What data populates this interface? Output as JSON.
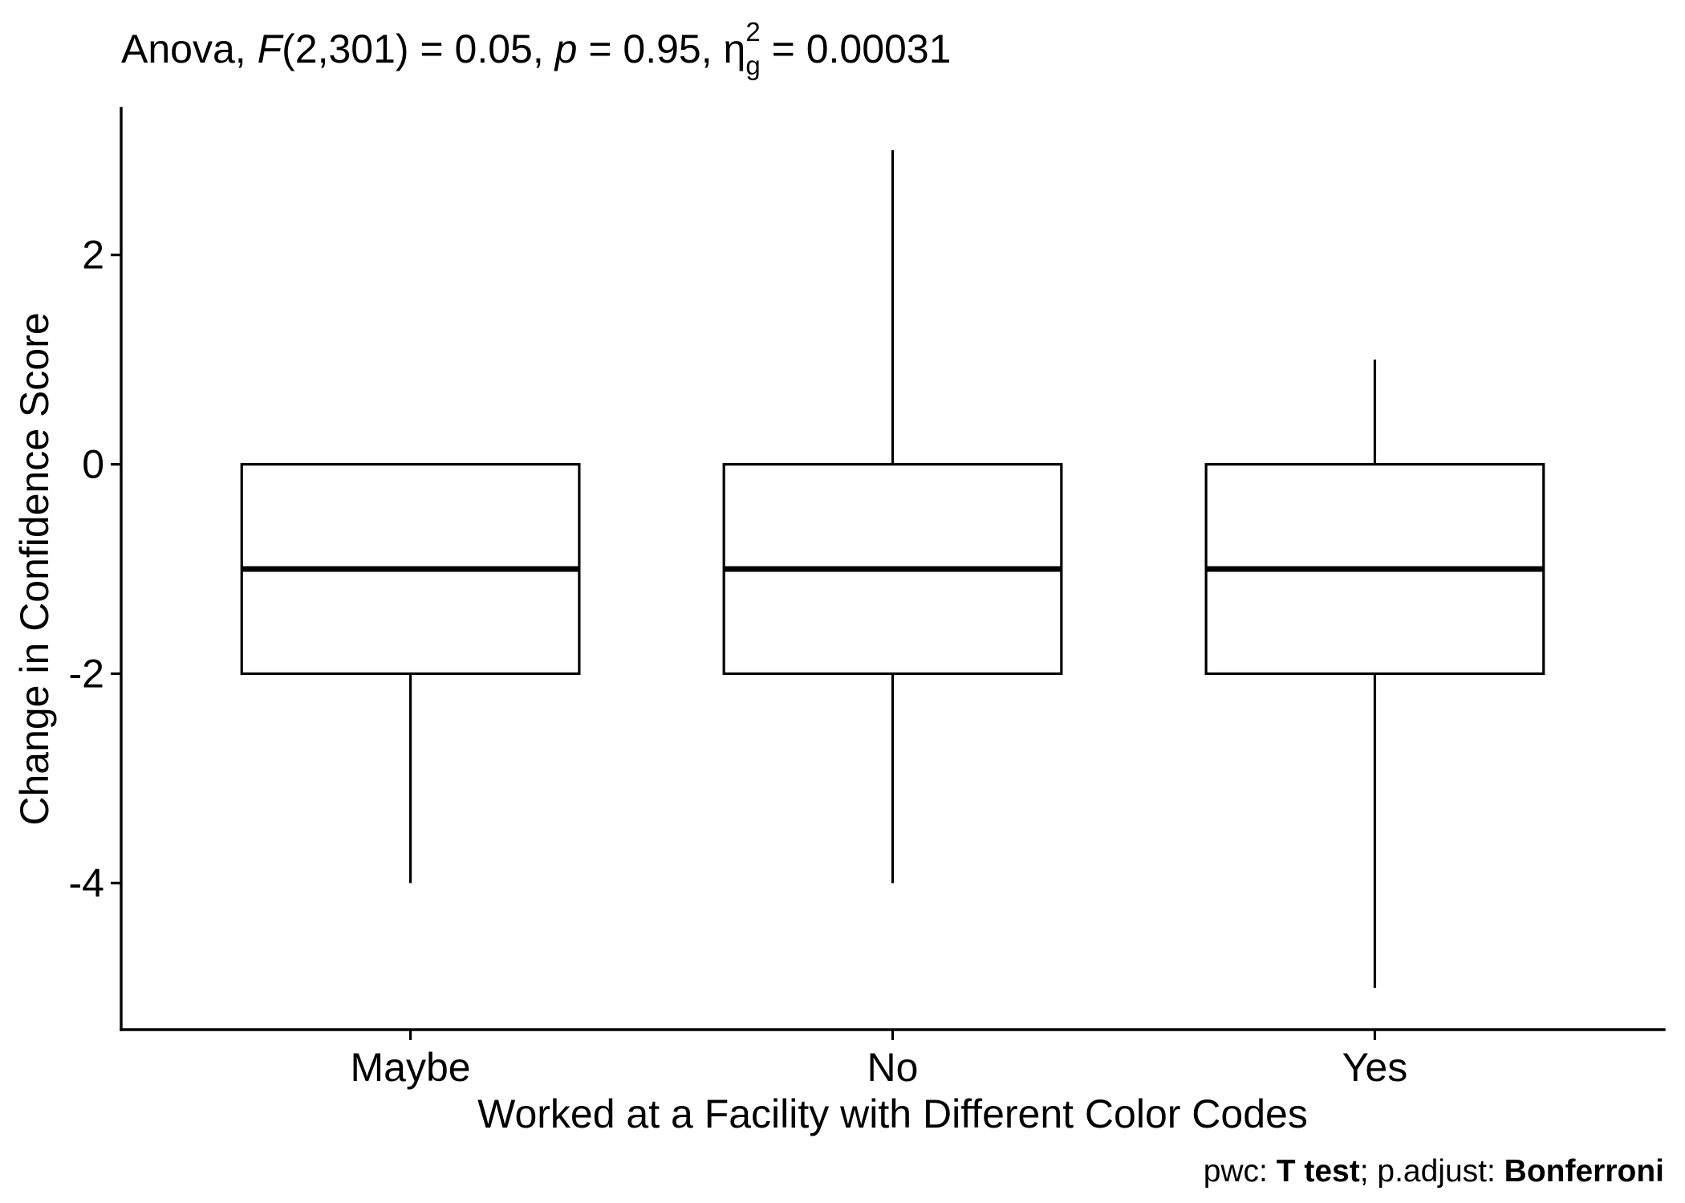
{
  "colors": {
    "background": "#ffffff",
    "ink": "#000000",
    "box_fill": "#ffffff"
  },
  "chart_data": {
    "type": "box",
    "title_parts": [
      "Anova, ",
      "F",
      "(2,301) = 0.05, ",
      "p",
      " = 0.95, ",
      "η",
      "2",
      "g",
      " = 0.00031"
    ],
    "xlabel": "Worked at a Facility with Different Color Codes",
    "ylabel": "Change in Confidence Score",
    "categories": [
      "Maybe",
      "No",
      "Yes"
    ],
    "boxes": [
      {
        "min": -4,
        "q1": -2,
        "median": -1,
        "q3": 0,
        "max": 0
      },
      {
        "min": -4,
        "q1": -2,
        "median": -1,
        "q3": 0,
        "max": 3
      },
      {
        "min": -5,
        "q1": -2,
        "median": -1,
        "q3": 0,
        "max": 1
      }
    ],
    "ylim": [
      -5.4,
      3.4
    ],
    "y_ticks": [
      2,
      0,
      -2,
      -4
    ],
    "grid": false,
    "legend": "none",
    "caption_parts": [
      "pwc: ",
      "T test",
      "; p.adjust: ",
      "Bonferroni"
    ]
  }
}
